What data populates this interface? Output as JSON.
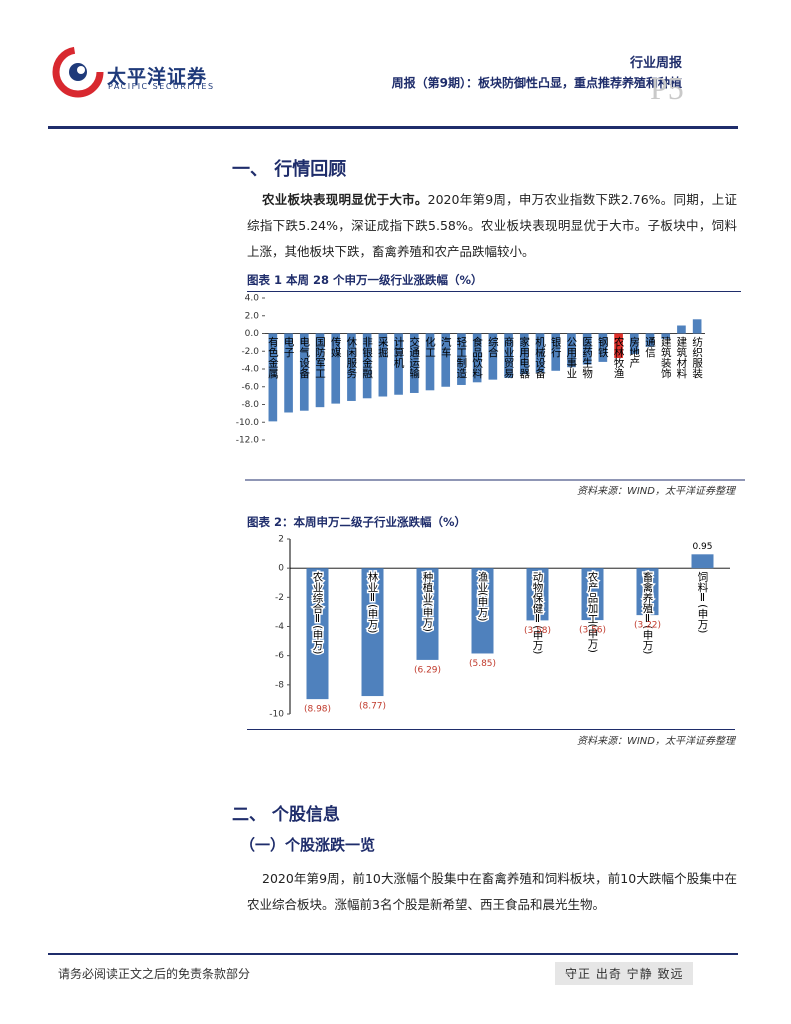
{
  "header": {
    "brand": "太平洋证券",
    "brand_en": "PACIFIC SECURITIES",
    "report_type": "行业周报",
    "title": "周报（第9期）：板块防御性凸显，重点推荐养殖和种植",
    "page": "P5"
  },
  "section1": {
    "heading": "一、 行情回顾",
    "lead": "农业板块表现明显优于大市。",
    "text": "2020年第9周，申万农业指数下跌2.76%。同期，上证综指下跌5.24%，深证成指下跌5.58%。农业板块表现明显优于大市。子板块中，饲料上涨，其他板块下跌，畜禽养殖和农产品跌幅较小。"
  },
  "chart_data": [
    {
      "type": "bar",
      "title": "图表 1 本周 28 个申万一级行业涨跌幅（%）",
      "source": "资料来源：WIND，太平洋证券整理",
      "categories": [
        "有色金属",
        "电子",
        "电气设备",
        "国防军工",
        "传媒",
        "休闲服务",
        "非银金融",
        "采掘",
        "计算机",
        "交通运输",
        "化工",
        "汽车",
        "轻工制造",
        "食品饮料",
        "综合",
        "商业贸易",
        "家用电器",
        "机械设备",
        "银行",
        "公用事业",
        "医药生物",
        "钢铁",
        "农林牧渔",
        "房地产",
        "通信",
        "建筑装饰",
        "建筑材料",
        "纺织服装"
      ],
      "values": [
        -9.9,
        -8.9,
        -8.7,
        -8.3,
        -7.9,
        -7.6,
        -7.3,
        -7.1,
        -6.9,
        -6.7,
        -6.4,
        -6.0,
        -5.8,
        -5.5,
        -5.2,
        -5.0,
        -4.6,
        -4.4,
        -4.2,
        -3.8,
        -3.5,
        -3.2,
        -2.76,
        -2.3,
        -1.5,
        -0.6,
        0.9,
        1.6
      ],
      "colors": [
        "#4f81bd",
        "#4f81bd",
        "#4f81bd",
        "#4f81bd",
        "#4f81bd",
        "#4f81bd",
        "#4f81bd",
        "#4f81bd",
        "#4f81bd",
        "#4f81bd",
        "#4f81bd",
        "#4f81bd",
        "#4f81bd",
        "#4f81bd",
        "#4f81bd",
        "#4f81bd",
        "#4f81bd",
        "#4f81bd",
        "#4f81bd",
        "#4f81bd",
        "#4f81bd",
        "#4f81bd",
        "#e0302a",
        "#4f81bd",
        "#4f81bd",
        "#4f81bd",
        "#4f81bd",
        "#4f81bd"
      ],
      "ylim": [
        -12,
        4
      ],
      "yticks": [
        {
          "value": 4,
          "label": "4.0"
        },
        {
          "value": 2,
          "label": "2.0"
        },
        {
          "value": 0,
          "label": "0.0"
        },
        {
          "value": -2,
          "label": "-2.0"
        },
        {
          "value": -4,
          "label": "-4.0"
        },
        {
          "value": -6,
          "label": "-6.0"
        },
        {
          "value": -8,
          "label": "-8.0"
        },
        {
          "value": -10,
          "label": "-10.0"
        },
        {
          "value": -12,
          "label": "-12.0"
        }
      ]
    },
    {
      "type": "bar",
      "title": "图表 2：本周申万二级子行业涨跌幅（%）",
      "source": "资料来源：WIND，太平洋证券整理",
      "categories": [
        "农业综合Ⅱ(申万)",
        "林业Ⅱ(申万)",
        "种植业(申万)",
        "渔业(申万)",
        "动物保健Ⅱ(申万)",
        "农产品加工(申万)",
        "畜禽养殖Ⅱ(申万)",
        "饲料Ⅱ(申万)"
      ],
      "values": [
        -8.98,
        -8.77,
        -6.29,
        -5.85,
        -3.58,
        -3.56,
        -3.22,
        0.95
      ],
      "value_labels": [
        "(8.98)",
        "(8.77)",
        "(6.29)",
        "(5.85)",
        "(3.58)",
        "(3.56)",
        "(3.22)",
        "0.95"
      ],
      "color": "#4f81bd",
      "negative_label_color": "#c0392b",
      "positive_label_color": "#000000",
      "ylim": [
        -10,
        2
      ],
      "yticks": [
        2,
        0,
        -2,
        -4,
        -6,
        -8,
        -10
      ]
    }
  ],
  "section2": {
    "heading": "二、 个股信息",
    "subheading": "（一）个股涨跌一览",
    "text": "2020年第9周，前10大涨幅个股集中在畜禽养殖和饲料板块，前10大跌幅个股集中在农业综合板块。涨幅前3名个股是新希望、西王食品和晨光生物。"
  },
  "footer": {
    "disclaimer": "请务必阅读正文之后的免责条款部分",
    "motto": "守正 出奇 宁静 致远"
  }
}
